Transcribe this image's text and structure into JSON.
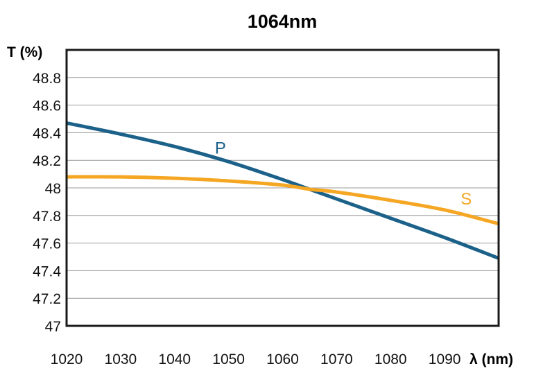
{
  "chart_data": {
    "type": "line",
    "title": "1064nm",
    "xlabel": "λ (nm)",
    "ylabel": "T (%)",
    "xlim": [
      1020,
      1100
    ],
    "ylim": [
      47,
      49
    ],
    "x_ticks": [
      "1020",
      "1030",
      "1040",
      "1050",
      "1060",
      "1070",
      "1080",
      "1090"
    ],
    "y_ticks": [
      "47",
      "47.2",
      "47.4",
      "47.6",
      "47.8",
      "48",
      "48.2",
      "48.4",
      "48.6",
      "48.8"
    ],
    "grid": "horizontal",
    "series": [
      {
        "name": "P",
        "color": "#1b6189",
        "x": [
          1020,
          1030,
          1040,
          1050,
          1060,
          1065,
          1070,
          1080,
          1090,
          1100
        ],
        "y": [
          48.47,
          48.39,
          48.3,
          48.19,
          48.06,
          47.99,
          47.92,
          47.78,
          47.64,
          47.49
        ]
      },
      {
        "name": "S",
        "color": "#f5a623",
        "x": [
          1020,
          1030,
          1040,
          1050,
          1060,
          1065,
          1070,
          1080,
          1090,
          1100
        ],
        "y": [
          48.08,
          48.08,
          48.07,
          48.05,
          48.02,
          47.99,
          47.97,
          47.91,
          47.84,
          47.74
        ]
      }
    ]
  }
}
